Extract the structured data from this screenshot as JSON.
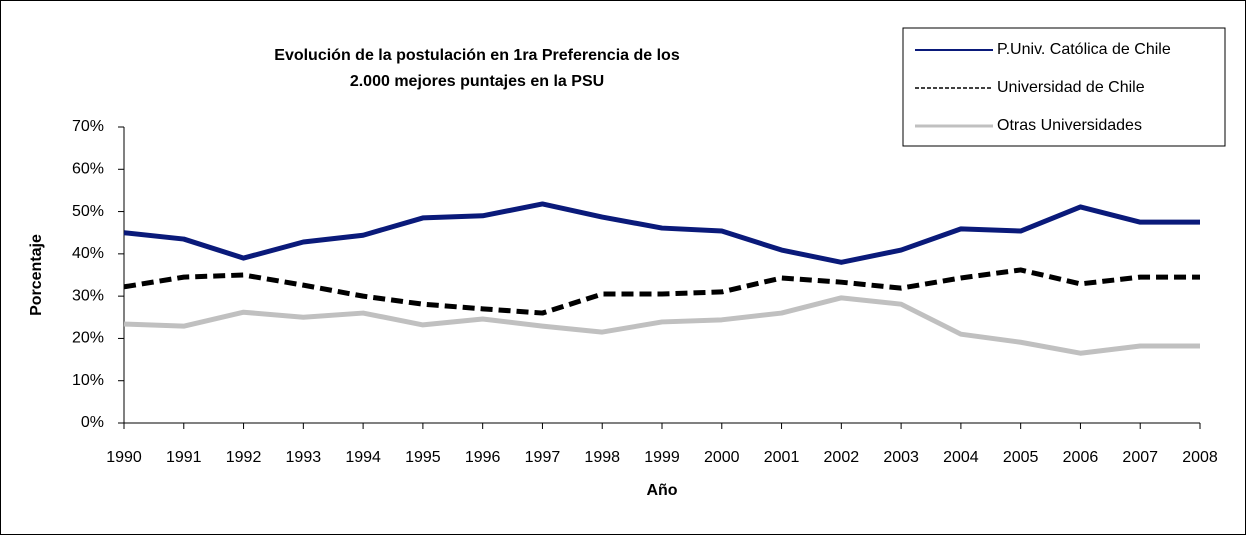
{
  "chart_data": {
    "type": "line",
    "title": [
      "Evolución de la postulación en 1ra Preferencia de los",
      "2.000 mejores puntajes en la PSU"
    ],
    "x_label": "Año",
    "y_label": "Porcentaje",
    "categories": [
      "1990",
      "1991",
      "1992",
      "1993",
      "1994",
      "1995",
      "1996",
      "1997",
      "1998",
      "1999",
      "2000",
      "2001",
      "2002",
      "2003",
      "2004",
      "2005",
      "2006",
      "2007",
      "2008"
    ],
    "series": [
      {
        "name": "P.Univ. Católica de Chile",
        "color": "#0a1a7a",
        "style": "solid",
        "values": [
          45,
          43.5,
          39,
          42.8,
          44.4,
          48.5,
          49,
          51.8,
          48.7,
          46.1,
          45.4,
          40.9,
          38,
          40.9,
          45.9,
          45.4,
          51.1,
          47.5,
          47.5
        ]
      },
      {
        "name": "Universidad de Chile",
        "color": "#000000",
        "style": "dashed",
        "values": [
          32.2,
          34.5,
          35,
          32.6,
          30,
          28.1,
          27,
          26,
          30.5,
          30.5,
          31,
          34.3,
          33.3,
          31.9,
          34.3,
          36.2,
          32.9,
          34.5,
          34.5
        ]
      },
      {
        "name": "Otras Universidades",
        "color": "#c0c0c0",
        "style": "dotted",
        "values": [
          23.4,
          22.9,
          26.2,
          25,
          26,
          23.2,
          24.6,
          22.9,
          21.5,
          23.9,
          24.4,
          26,
          29.6,
          28.1,
          21,
          19.1,
          16.5,
          18.2,
          18.2
        ]
      }
    ],
    "ylim": [
      0,
      70
    ],
    "yticks": [
      {
        "value": 0,
        "label": "0%"
      },
      {
        "value": 10,
        "label": "10%"
      },
      {
        "value": 20,
        "label": "20%"
      },
      {
        "value": 30,
        "label": "30%"
      },
      {
        "value": 40,
        "label": "40%"
      },
      {
        "value": 50,
        "label": "50%"
      },
      {
        "value": 60,
        "label": "60%"
      },
      {
        "value": 70,
        "label": "70%"
      }
    ],
    "grid": false,
    "legend": "upper right"
  }
}
